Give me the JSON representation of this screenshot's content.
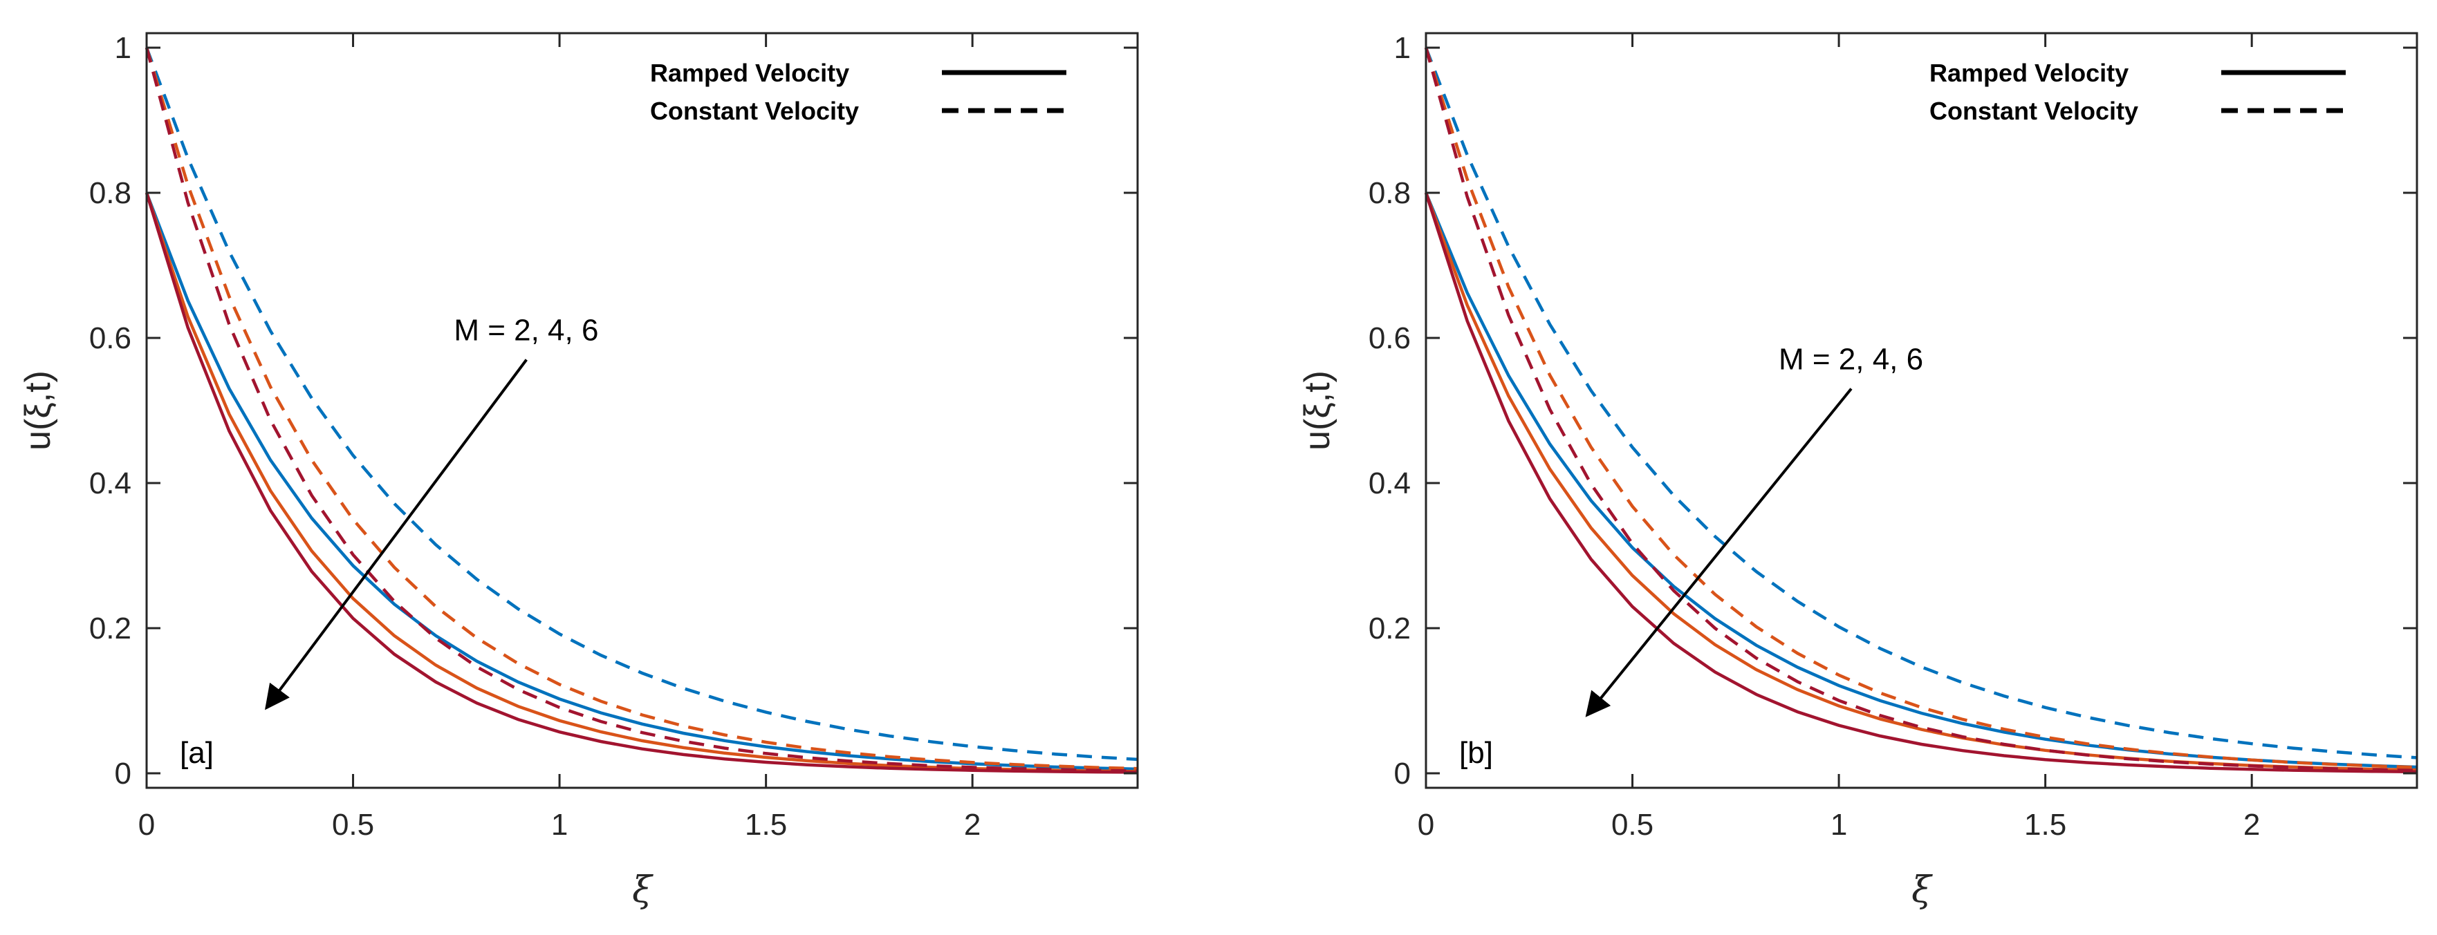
{
  "chart_data": [
    {
      "type": "line",
      "panel_label": "[a]",
      "xlabel": "ξ",
      "ylabel": "u(ξ,t)",
      "xlim": [
        0,
        2.4
      ],
      "ylim": [
        -0.02,
        1.02
      ],
      "xticks": [
        0,
        0.5,
        1,
        1.5,
        2
      ],
      "xtick_labels": [
        "0",
        "0.5",
        "1",
        "1.5",
        "2"
      ],
      "yticks": [
        0,
        0.2,
        0.4,
        0.6,
        0.8,
        1
      ],
      "ytick_labels": [
        "0",
        "0.2",
        "0.4",
        "0.6",
        "0.8",
        "1"
      ],
      "grid": false,
      "legend": {
        "placement": "top-right",
        "entries": [
          {
            "label": "Ramped Velocity",
            "style": "solid"
          },
          {
            "label": "Constant Velocity",
            "style": "dashed"
          }
        ]
      },
      "annotation": {
        "text": "M = 2, 4, 6",
        "arrow_from": [
          0.92,
          0.57
        ],
        "arrow_to": [
          0.29,
          0.09
        ]
      },
      "x": [
        0,
        0.1,
        0.2,
        0.3,
        0.4,
        0.5,
        0.6,
        0.7,
        0.8,
        0.9,
        1.0,
        1.1,
        1.2,
        1.3,
        1.4,
        1.5,
        1.6,
        1.7,
        1.8,
        1.9,
        2.0,
        2.1,
        2.2,
        2.3,
        2.4
      ],
      "series": [
        {
          "style": "solid",
          "color": "#0072BD",
          "values": [
            0.8,
            0.6513,
            0.5303,
            0.4317,
            0.3515,
            0.2862,
            0.233,
            0.1897,
            0.1544,
            0.1257,
            0.1024,
            0.0833,
            0.0679,
            0.0552,
            0.045,
            0.0366,
            0.0298,
            0.0243,
            0.0198,
            0.0161,
            0.0131,
            0.0107,
            0.0087,
            0.0071,
            0.0058
          ]
        },
        {
          "style": "solid",
          "color": "#D95319",
          "values": [
            0.8,
            0.6293,
            0.495,
            0.3894,
            0.3063,
            0.2409,
            0.1895,
            0.1491,
            0.1173,
            0.0922,
            0.0726,
            0.0571,
            0.0449,
            0.0353,
            0.0278,
            0.0219,
            0.0172,
            0.0135,
            0.0106,
            0.0084,
            0.0066,
            0.0052,
            0.0041,
            0.0032,
            0.0025
          ]
        },
        {
          "style": "solid",
          "color": "#A2142F",
          "values": [
            0.8,
            0.6143,
            0.4717,
            0.3622,
            0.2781,
            0.2135,
            0.164,
            0.1259,
            0.0967,
            0.0742,
            0.057,
            0.0438,
            0.0336,
            0.0258,
            0.0198,
            0.0152,
            0.0117,
            0.009,
            0.0069,
            0.0053,
            0.0041,
            0.0031,
            0.0024,
            0.0018,
            0.0014
          ]
        },
        {
          "style": "dashed",
          "color": "#0072BD",
          "values": [
            1.0,
            0.8479,
            0.7189,
            0.6096,
            0.5169,
            0.4382,
            0.3716,
            0.3151,
            0.2671,
            0.2265,
            0.192,
            0.1628,
            0.1381,
            0.1171,
            0.0993,
            0.0842,
            0.0714,
            0.0605,
            0.0513,
            0.0435,
            0.0369,
            0.0313,
            0.0265,
            0.0225,
            0.0191
          ]
        },
        {
          "style": "dashed",
          "color": "#D95319",
          "values": [
            1.0,
            0.8106,
            0.657,
            0.5326,
            0.4317,
            0.3499,
            0.2837,
            0.2299,
            0.1864,
            0.1511,
            0.1225,
            0.0993,
            0.0805,
            0.0652,
            0.0529,
            0.0429,
            0.0347,
            0.0282,
            0.0228,
            0.0185,
            0.015,
            0.0122,
            0.0099,
            0.008,
            0.0065
          ]
        },
        {
          "style": "dashed",
          "color": "#A2142F",
          "values": [
            1.0,
            0.7866,
            0.6188,
            0.4868,
            0.3829,
            0.3012,
            0.2369,
            0.1864,
            0.1466,
            0.1153,
            0.0907,
            0.0714,
            0.0561,
            0.0442,
            0.0347,
            0.0273,
            0.0215,
            0.0169,
            0.0133,
            0.0105,
            0.0082,
            0.0065,
            0.0051,
            0.004,
            0.0032
          ]
        }
      ]
    },
    {
      "type": "line",
      "panel_label": "[b]",
      "xlabel": "ξ",
      "ylabel": "u(ξ,t)",
      "xlim": [
        0,
        2.4
      ],
      "ylim": [
        -0.02,
        1.02
      ],
      "xticks": [
        0,
        0.5,
        1,
        1.5,
        2
      ],
      "xtick_labels": [
        "0",
        "0.5",
        "1",
        "1.5",
        "2"
      ],
      "yticks": [
        0,
        0.2,
        0.4,
        0.6,
        0.8,
        1
      ],
      "ytick_labels": [
        "0",
        "0.2",
        "0.4",
        "0.6",
        "0.8",
        "1"
      ],
      "grid": false,
      "legend": {
        "placement": "top-right",
        "entries": [
          {
            "label": "Ramped Velocity",
            "style": "solid"
          },
          {
            "label": "Constant Velocity",
            "style": "dashed"
          }
        ]
      },
      "annotation": {
        "text": "M = 2, 4, 6",
        "arrow_from": [
          1.03,
          0.53
        ],
        "arrow_to": [
          0.39,
          0.08
        ]
      },
      "x": [
        0,
        0.1,
        0.2,
        0.3,
        0.4,
        0.5,
        0.6,
        0.7,
        0.8,
        0.9,
        1.0,
        1.1,
        1.2,
        1.3,
        1.4,
        1.5,
        1.6,
        1.7,
        1.8,
        1.9,
        2.0,
        2.1,
        2.2,
        2.3,
        2.4
      ],
      "series": [
        {
          "style": "solid",
          "color": "#0072BD",
          "values": [
            0.8,
            0.6622,
            0.5482,
            0.4538,
            0.3757,
            0.311,
            0.2575,
            0.2131,
            0.1764,
            0.1461,
            0.1209,
            0.1001,
            0.0829,
            0.0686,
            0.0568,
            0.047,
            0.0389,
            0.0322,
            0.0267,
            0.0221,
            0.0183,
            0.0151,
            0.0125,
            0.0104,
            0.0086
          ]
        },
        {
          "style": "solid",
          "color": "#D95319",
          "values": [
            0.8,
            0.645,
            0.52,
            0.4193,
            0.3381,
            0.2726,
            0.2198,
            0.1772,
            0.1429,
            0.1152,
            0.0929,
            0.0749,
            0.0604,
            0.0487,
            0.0392,
            0.0316,
            0.0255,
            0.0206,
            0.0166,
            0.0134,
            0.0108,
            0.0087,
            0.007,
            0.0056,
            0.0045
          ]
        },
        {
          "style": "solid",
          "color": "#A2142F",
          "values": [
            0.8,
            0.6233,
            0.4857,
            0.3784,
            0.2949,
            0.2297,
            0.179,
            0.1395,
            0.1087,
            0.0847,
            0.066,
            0.0514,
            0.04,
            0.0312,
            0.0243,
            0.0189,
            0.0148,
            0.0115,
            0.009,
            0.007,
            0.0054,
            0.0042,
            0.0033,
            0.0026,
            0.002
          ]
        },
        {
          "style": "dashed",
          "color": "#0072BD",
          "values": [
            1.0,
            0.8521,
            0.7261,
            0.6188,
            0.5273,
            0.4493,
            0.3829,
            0.3263,
            0.278,
            0.2369,
            0.2019,
            0.172,
            0.1466,
            0.1249,
            0.1065,
            0.0907,
            0.0773,
            0.0659,
            0.0561,
            0.0478,
            0.0408,
            0.0347,
            0.0296,
            0.0252,
            0.0215
          ]
        },
        {
          "style": "dashed",
          "color": "#D95319",
          "values": [
            1.0,
            0.8187,
            0.6703,
            0.5488,
            0.4493,
            0.3679,
            0.3012,
            0.2466,
            0.2019,
            0.1653,
            0.1353,
            0.1108,
            0.0907,
            0.0743,
            0.0608,
            0.0498,
            0.0408,
            0.0334,
            0.0273,
            0.0224,
            0.0183,
            0.015,
            0.0123,
            0.0101,
            0.0082
          ]
        },
        {
          "style": "dashed",
          "color": "#A2142F",
          "values": [
            1.0,
            0.7945,
            0.6313,
            0.5016,
            0.3985,
            0.3166,
            0.2516,
            0.1999,
            0.1588,
            0.1262,
            0.1003,
            0.0797,
            0.0633,
            0.0503,
            0.04,
            0.0317,
            0.0252,
            0.02,
            0.0159,
            0.0126,
            0.0101,
            0.008,
            0.0063,
            0.005,
            0.004
          ]
        }
      ]
    }
  ]
}
